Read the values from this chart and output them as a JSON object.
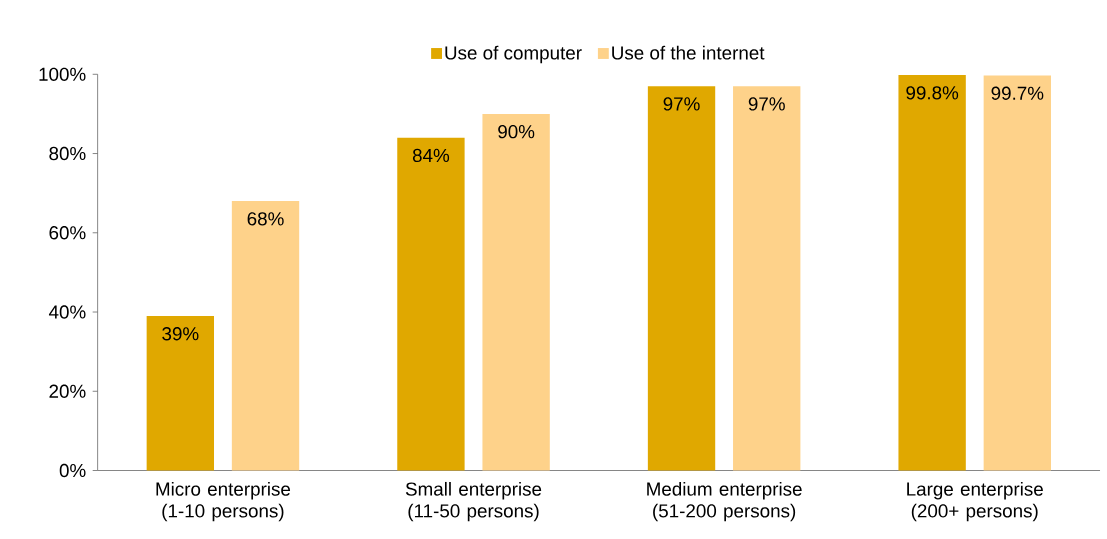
{
  "chart_data": {
    "type": "bar",
    "categories": [
      "Micro enterprise (1-10 persons)",
      "Small enterprise (11-50 persons)",
      "Medium enterprise (51-200 persons)",
      "Large enterprise (200+ persons)"
    ],
    "series": [
      {
        "name": "Use of computer",
        "color": "#e0a800",
        "values": [
          39,
          84,
          97,
          99.8
        ],
        "value_labels": [
          "39%",
          "84%",
          "97%",
          "99.8%"
        ]
      },
      {
        "name": "Use of the internet",
        "color": "#fed28a",
        "values": [
          68,
          90,
          97,
          99.7
        ],
        "value_labels": [
          "68%",
          "90%",
          "97%",
          "99.7%"
        ]
      }
    ],
    "ylim": [
      0,
      100
    ],
    "yticks": [
      {
        "value": 0,
        "label": "0%"
      },
      {
        "value": 20,
        "label": "20%"
      },
      {
        "value": 40,
        "label": "40%"
      },
      {
        "value": 60,
        "label": "60%"
      },
      {
        "value": 80,
        "label": "80%"
      },
      {
        "value": 100,
        "label": "100%"
      }
    ],
    "grid": false,
    "legend": "top"
  }
}
